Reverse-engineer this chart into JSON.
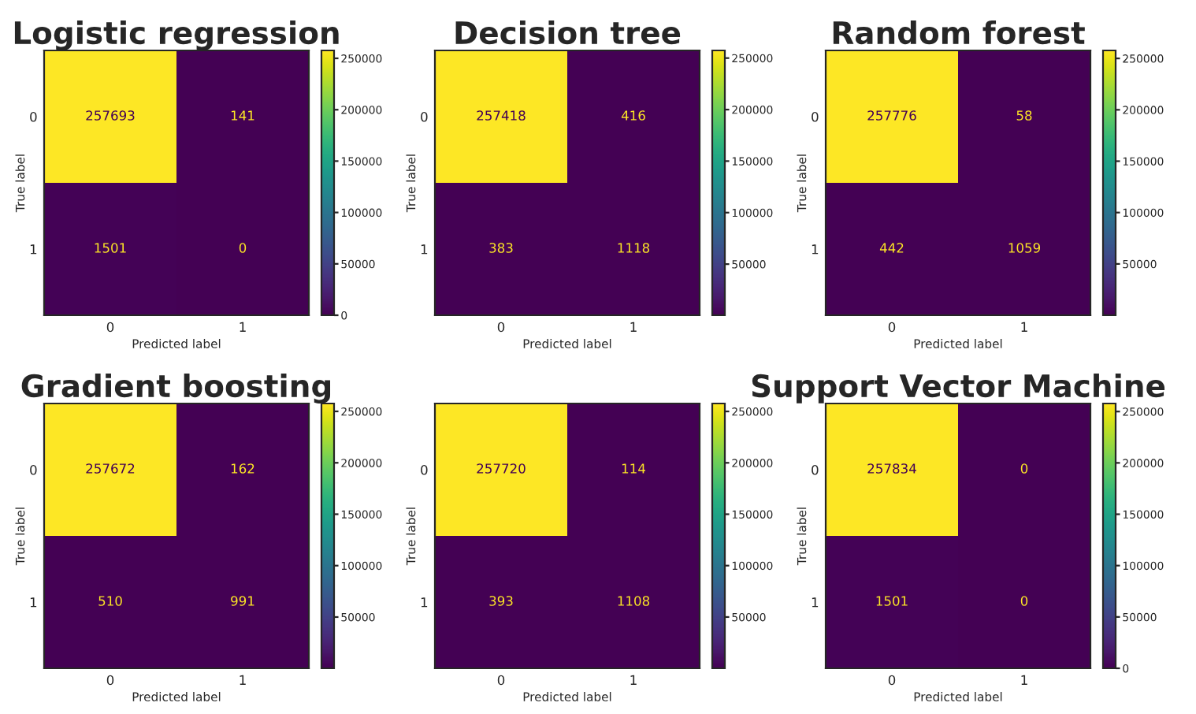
{
  "chart_data": [
    {
      "type": "heatmap",
      "title": "Logistic regression",
      "xlabel": "Predicted label",
      "ylabel": "True label",
      "categories": [
        "0",
        "1"
      ],
      "y_categories": [
        "0",
        "1"
      ],
      "cells": [
        [
          257693,
          141
        ],
        [
          1501,
          0
        ]
      ],
      "clim": [
        0,
        257693
      ],
      "cticks": [
        0,
        50000,
        100000,
        150000,
        200000,
        250000
      ],
      "data_labels": true
    },
    {
      "type": "heatmap",
      "title": "Decision tree",
      "xlabel": "Predicted label",
      "ylabel": "True label",
      "categories": [
        "0",
        "1"
      ],
      "y_categories": [
        "0",
        "1"
      ],
      "cells": [
        [
          257418,
          416
        ],
        [
          383,
          1118
        ]
      ],
      "clim": [
        383,
        257418
      ],
      "cticks": [
        50000,
        100000,
        150000,
        200000,
        250000
      ],
      "data_labels": true
    },
    {
      "type": "heatmap",
      "title": "Random forest",
      "xlabel": "Predicted label",
      "ylabel": "True label",
      "categories": [
        "0",
        "1"
      ],
      "y_categories": [
        "0",
        "1"
      ],
      "cells": [
        [
          257776,
          58
        ],
        [
          442,
          1059
        ]
      ],
      "clim": [
        58,
        257776
      ],
      "cticks": [
        50000,
        100000,
        150000,
        200000,
        250000
      ],
      "data_labels": true
    },
    {
      "type": "heatmap",
      "title": "Gradient boosting",
      "xlabel": "Predicted label",
      "ylabel": "True label",
      "categories": [
        "0",
        "1"
      ],
      "y_categories": [
        "0",
        "1"
      ],
      "cells": [
        [
          257672,
          162
        ],
        [
          510,
          991
        ]
      ],
      "clim": [
        162,
        257672
      ],
      "cticks": [
        50000,
        100000,
        150000,
        200000,
        250000
      ],
      "data_labels": true
    },
    {
      "type": "heatmap",
      "xlabel": "Predicted label",
      "ylabel": "True label",
      "categories": [
        "0",
        "1"
      ],
      "y_categories": [
        "0",
        "1"
      ],
      "cells": [
        [
          257720,
          114
        ],
        [
          393,
          1108
        ]
      ],
      "clim": [
        114,
        257720
      ],
      "cticks": [
        50000,
        100000,
        150000,
        200000,
        250000
      ],
      "data_labels": true
    },
    {
      "type": "heatmap",
      "title": "Support Vector Machine",
      "xlabel": "Predicted label",
      "ylabel": "True label",
      "categories": [
        "0",
        "1"
      ],
      "y_categories": [
        "0",
        "1"
      ],
      "cells": [
        [
          257834,
          0
        ],
        [
          1501,
          0
        ]
      ],
      "clim": [
        0,
        257834
      ],
      "cticks": [
        0,
        50000,
        100000,
        150000,
        200000,
        250000
      ],
      "data_labels": true
    }
  ]
}
